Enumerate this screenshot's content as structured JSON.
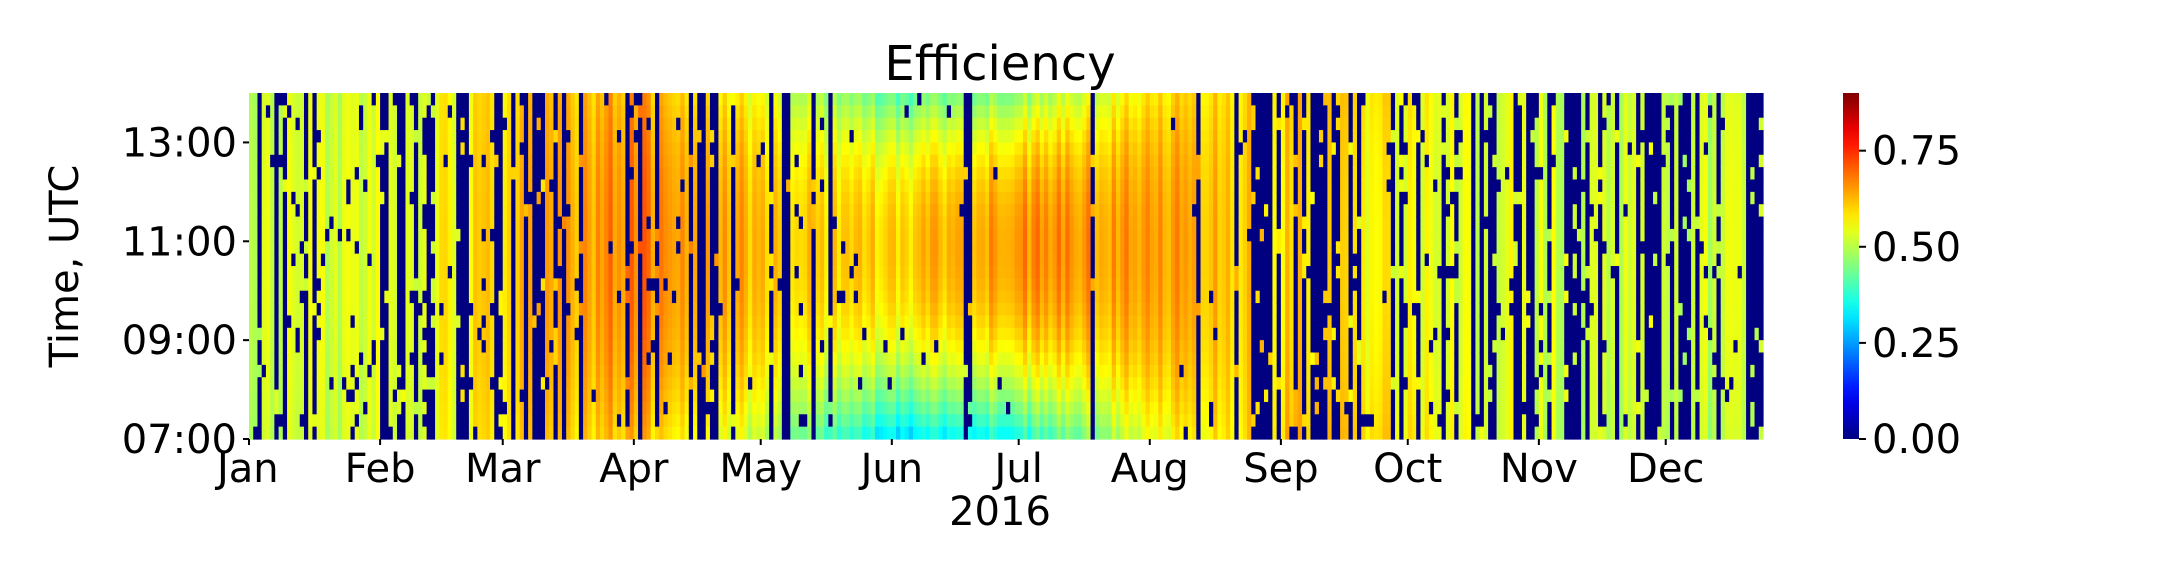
{
  "chart_data": {
    "type": "heatmap",
    "title": "Efficiency",
    "ylabel": "Time, UTC",
    "xlabel": "2016",
    "x_ticks": [
      "Jan",
      "Feb",
      "Mar",
      "Apr",
      "May",
      "Jun",
      "Jul",
      "Aug",
      "Sep",
      "Oct",
      "Nov",
      "Dec"
    ],
    "y_ticks": [
      "07:00",
      "09:00",
      "11:00",
      "13:00"
    ],
    "ylim": [
      "07:00",
      "14:00"
    ],
    "xlim": [
      "2016-01-01",
      "2016-12-24"
    ],
    "colorbar": {
      "colormap": "jet",
      "range": [
        0,
        0.9
      ],
      "ticks": [
        "0.00",
        "0.25",
        "0.50",
        "0.75"
      ]
    },
    "missing_value": 0,
    "seasonal_pattern": {
      "months": [
        "Jan",
        "Feb",
        "Mar",
        "Apr",
        "May",
        "Jun",
        "Jul",
        "Aug",
        "Sep",
        "Oct",
        "Nov",
        "Dec"
      ],
      "midday_efficiency": [
        0.52,
        0.53,
        0.6,
        0.68,
        0.62,
        0.6,
        0.66,
        0.66,
        0.6,
        0.55,
        0.53,
        0.52
      ],
      "morning_evening_efficiency": [
        0.5,
        0.52,
        0.58,
        0.62,
        0.5,
        0.3,
        0.35,
        0.55,
        0.62,
        0.58,
        0.52,
        0.5
      ],
      "missing_fraction": [
        0.55,
        0.5,
        0.5,
        0.35,
        0.3,
        0.15,
        0.02,
        0.05,
        0.4,
        0.35,
        0.4,
        0.45
      ]
    }
  }
}
